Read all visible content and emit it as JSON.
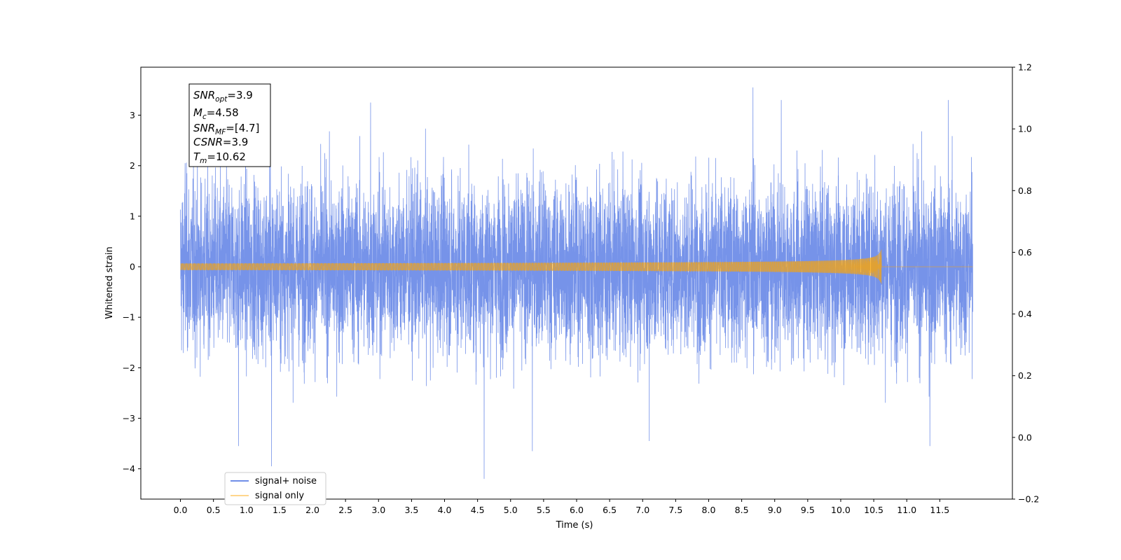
{
  "chart_data": {
    "type": "line",
    "xlabel": "Time (s)",
    "ylabel": "Whitened strain",
    "xlim": [
      -0.6,
      12.6
    ],
    "ylim": [
      -4.6,
      3.95
    ],
    "y2lim": [
      -0.2,
      1.2
    ],
    "grid": false,
    "x_ticks": [
      "0.0",
      "0.5",
      "1.0",
      "1.5",
      "2.0",
      "2.5",
      "3.0",
      "3.5",
      "4.0",
      "4.5",
      "5.0",
      "5.5",
      "6.0",
      "6.5",
      "7.0",
      "7.5",
      "8.0",
      "8.5",
      "9.0",
      "9.5",
      "10.0",
      "10.5",
      "11.0",
      "11.5"
    ],
    "y_ticks": [
      "−4",
      "−3",
      "−2",
      "−1",
      "0",
      "1",
      "2",
      "3"
    ],
    "y2_ticks": [
      "−0.2",
      "0.0",
      "0.2",
      "0.4",
      "0.6",
      "0.8",
      "1.0",
      "1.2"
    ],
    "series": [
      {
        "name": "signal+ noise",
        "color": "#4169e1",
        "description_values": {
          "x_range": [
            0.0,
            12.0
          ],
          "typical_envelope": [
            -1.7,
            1.7
          ],
          "notable_peaks": [
            [
              0.07,
              2.05
            ],
            [
              1.35,
              2.9
            ],
            [
              2.88,
              3.25
            ],
            [
              8.67,
              3.55
            ],
            [
              9.1,
              3.3
            ],
            [
              11.63,
              3.3
            ]
          ],
          "notable_troughs": [
            [
              0.88,
              -3.55
            ],
            [
              1.38,
              -3.95
            ],
            [
              4.6,
              -4.2
            ],
            [
              5.33,
              -3.65
            ],
            [
              7.1,
              -3.45
            ],
            [
              11.35,
              -3.55
            ]
          ]
        }
      },
      {
        "name": "signal only",
        "color": "#ffa500",
        "description_values": {
          "x_range": [
            0.0,
            12.0
          ],
          "chirp_end_time": 10.62,
          "max_amplitude": 0.35
        }
      }
    ],
    "legend_position": "lower-left",
    "annotation_box": {
      "lines": [
        {
          "base": "SNR",
          "sub": "opt",
          "value": "=3.9"
        },
        {
          "base": "M",
          "sub": "c",
          "value": "=4.58"
        },
        {
          "base": "SNR",
          "sub": "MF",
          "value": "=[4.7]"
        },
        {
          "base": "CSNR",
          "sub": "",
          "value": "=3.9"
        },
        {
          "base": "T",
          "sub": "m",
          "value": "=10.62"
        }
      ]
    }
  }
}
